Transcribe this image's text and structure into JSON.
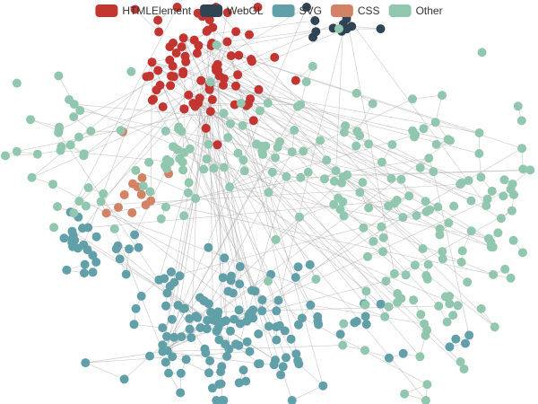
{
  "chart_data": {
    "type": "graph",
    "layout": "force",
    "legend_position": "top-center",
    "categories": [
      {
        "name": "HTMLElement",
        "color": "#c23531"
      },
      {
        "name": "WebGL",
        "color": "#2f4554"
      },
      {
        "name": "SVG",
        "color": "#61a0a8"
      },
      {
        "name": "CSS",
        "color": "#d48265"
      },
      {
        "name": "Other",
        "color": "#91c7ae"
      }
    ],
    "node_counts": {
      "HTMLElement": 80,
      "WebGL": 12,
      "SVG": 170,
      "CSS": 12,
      "Other": 240
    }
  }
}
